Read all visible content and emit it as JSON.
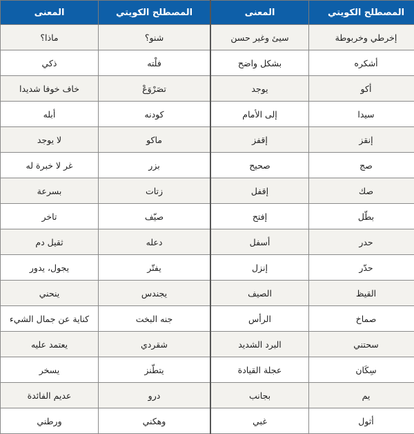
{
  "headers": [
    "المصطلح الكويتي",
    "المعنى",
    "المصطلح الكويتي",
    "المعنى"
  ],
  "header_color": "#0e5fa8",
  "rows": [
    [
      "إخرطي وخربوطة",
      "سيئ وغير حسن",
      "شنو؟",
      "ماذا؟"
    ],
    [
      "أشكره",
      "بشكل واضح",
      "فلْته",
      "ذكي"
    ],
    [
      "أكو",
      "يوجد",
      "تصَرْوَعْ",
      "خاف خوفا شديدا"
    ],
    [
      "سيدا",
      "إلى الأمام",
      "كودنه",
      "أبله"
    ],
    [
      "إنقز",
      "إقفز",
      "ماكو",
      "لا يوجد"
    ],
    [
      "صج",
      "صحيح",
      "بزر",
      "غر لا خبرة له"
    ],
    [
      "صك",
      "إقفل",
      "زتات",
      "بسرعة"
    ],
    [
      "بطّل",
      "إفتح",
      "صيّف",
      "تاخر"
    ],
    [
      "حدر",
      "أسفل",
      "دعله",
      "ثقيل دم"
    ],
    [
      "حدّر",
      "إنزل",
      "يفتّر",
      "يجول، يدور"
    ],
    [
      "القيظ",
      "الصيف",
      "يجندس",
      "ينحني"
    ],
    [
      "صماخ",
      "الرأس",
      "جنه البخت",
      "كناية عن جمال الشيء"
    ],
    [
      "سحتني",
      "البرد الشديد",
      "شقردي",
      "يعتمد عليه"
    ],
    [
      "سِكَان",
      "عجلة القيادة",
      "يتطّنز",
      "يسخر"
    ],
    [
      "يم",
      "بجانب",
      "درو",
      "عديم الفائدة"
    ],
    [
      "أثول",
      "غبي",
      "وهكني",
      "ورطني"
    ]
  ]
}
